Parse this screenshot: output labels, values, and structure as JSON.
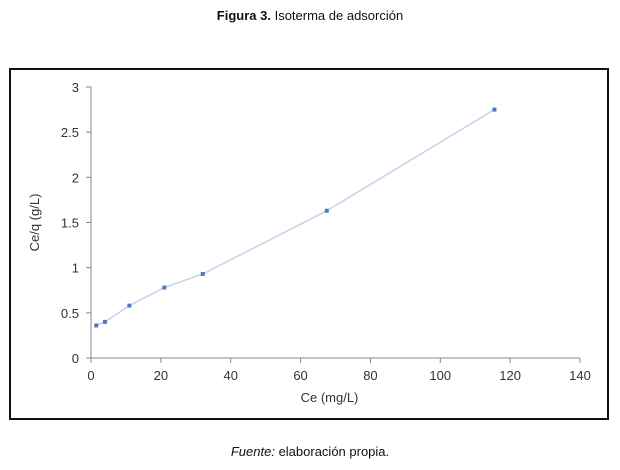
{
  "figure": {
    "label": "Figura 3.",
    "title": "Isoterma de adsorción"
  },
  "source": {
    "label": "Fuente:",
    "text": "elaboración propia."
  },
  "chart_data": {
    "type": "line",
    "xlabel": "Ce (mg/L)",
    "ylabel": "Ce/q (g/L)",
    "xlim": [
      0,
      140
    ],
    "ylim": [
      0,
      3
    ],
    "xticks": [
      0,
      20,
      40,
      60,
      80,
      100,
      120,
      140
    ],
    "yticks": [
      0,
      0.5,
      1,
      1.5,
      2,
      2.5,
      3
    ],
    "xtick_labels": [
      "0",
      "20",
      "40",
      "60",
      "80",
      "100",
      "120",
      "140"
    ],
    "ytick_labels": [
      "0",
      "0.5",
      "1",
      "1.5",
      "2",
      "2.5",
      "3"
    ],
    "grid": false,
    "legend": "none",
    "series": [
      {
        "color": "#c8d6ea",
        "marker_color": "#4a7cc0",
        "x": [
          1.5,
          4,
          11,
          21,
          32,
          67.5,
          115.5
        ],
        "y": [
          0.36,
          0.4,
          0.58,
          0.78,
          0.93,
          1.63,
          2.75
        ]
      }
    ]
  }
}
